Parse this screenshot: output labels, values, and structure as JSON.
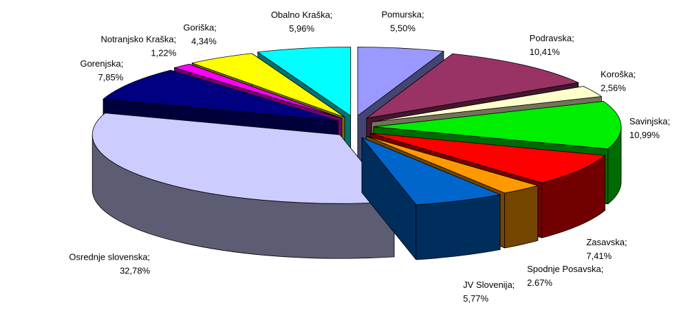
{
  "chart_data": {
    "type": "pie3d",
    "categories": [
      "Pomurska;",
      "Podravska;",
      "Koroška;",
      "Savinjska;",
      "Zasavska;",
      "Spodnje Posavska;",
      "JV Slovenija;",
      "Osrednje slovenska;",
      "Gorenjska;",
      "Notranjsko Kraška;",
      "Goriška;",
      "Obalno Kraška;"
    ],
    "values": [
      5.5,
      10.41,
      2.56,
      10.99,
      7.41,
      2.67,
      5.77,
      32.78,
      7.85,
      1.22,
      4.34,
      5.96
    ],
    "value_labels": [
      "5,50%",
      "10,41%",
      "2,56%",
      "10,99%",
      "7,41%",
      "2.67%",
      "5,77%",
      "32,78%",
      "7,85%",
      "1,22%",
      "4,34%",
      "5,96%"
    ],
    "colors": [
      "#9999ff",
      "#993366",
      "#ffffcc",
      "#00ee00",
      "#ff0000",
      "#ff9900",
      "#0066cc",
      "#ccccff",
      "#000080",
      "#ff00ff",
      "#ffff00",
      "#00ffff"
    ]
  }
}
